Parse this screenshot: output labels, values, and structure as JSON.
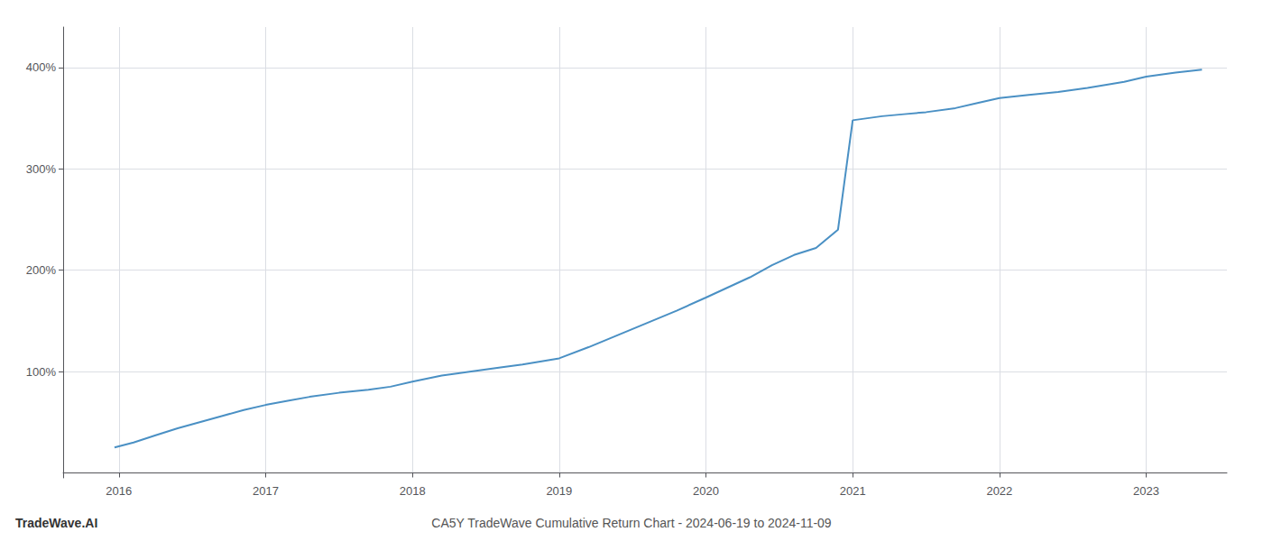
{
  "chart_data": {
    "type": "line",
    "title": "CA5Y TradeWave Cumulative Return Chart - 2024-06-19 to 2024-11-09",
    "annotations": [
      "TradeWave.AI"
    ],
    "x": [
      2015.97,
      2016.1,
      2016.25,
      2016.4,
      2016.55,
      2016.7,
      2016.85,
      2017.0,
      2017.15,
      2017.3,
      2017.5,
      2017.7,
      2017.85,
      2018.0,
      2018.2,
      2018.4,
      2018.6,
      2018.75,
      2019.0,
      2019.2,
      2019.4,
      2019.6,
      2019.8,
      2020.0,
      2020.15,
      2020.3,
      2020.45,
      2020.6,
      2020.75,
      2020.9,
      2021.0,
      2021.1,
      2021.2,
      2021.35,
      2021.5,
      2021.7,
      2021.85,
      2022.0,
      2022.2,
      2022.4,
      2022.6,
      2022.85,
      2023.0,
      2023.2,
      2023.38
    ],
    "values": [
      25,
      30,
      37,
      44,
      50,
      56,
      62,
      67,
      71,
      75,
      79,
      82,
      85,
      90,
      96,
      100,
      104,
      107,
      113,
      124,
      136,
      148,
      160,
      173,
      183,
      193,
      205,
      215,
      222,
      240,
      348,
      350,
      352,
      354,
      356,
      360,
      365,
      370,
      373,
      376,
      380,
      386,
      391,
      395,
      398
    ],
    "color": "#4a90c4",
    "xlim": [
      2015.62,
      2023.55
    ],
    "xticks": [
      2016,
      2017,
      2018,
      2019,
      2020,
      2021,
      2022,
      2023
    ],
    "ylim": [
      -5,
      440
    ],
    "yticks": [
      {
        "value": 100,
        "label": "100%"
      },
      {
        "value": 200,
        "label": "200%"
      },
      {
        "value": 300,
        "label": "300%"
      },
      {
        "value": 400,
        "label": "400%"
      }
    ],
    "grid": true
  }
}
